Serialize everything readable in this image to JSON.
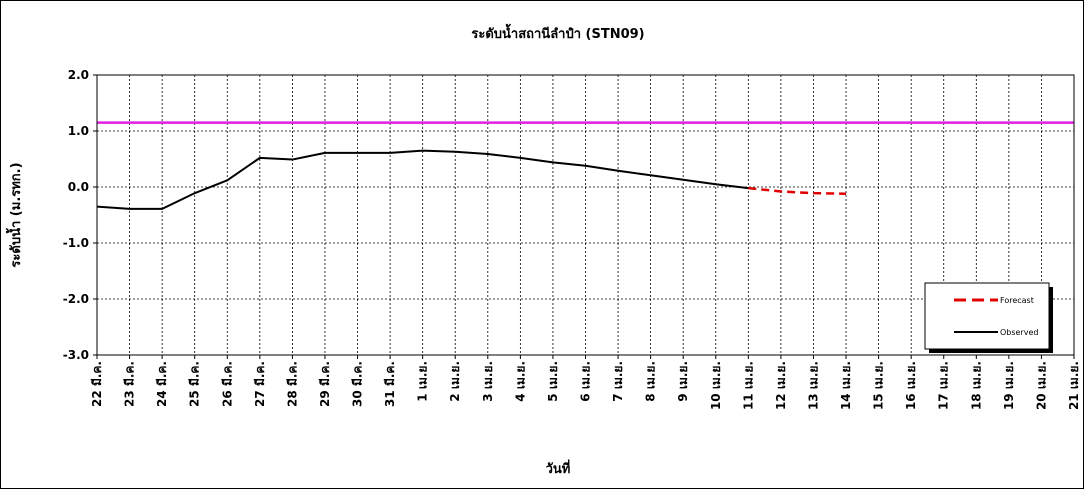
{
  "chart_data": {
    "type": "line",
    "title": "ระดับน้ำสถานีลำปำ (STN09)",
    "xlabel": "วันที่",
    "ylabel": "ระดับน้ำ (ม.รทก.)",
    "ylim": [
      -3.0,
      2.0
    ],
    "yticks": [
      "2.0",
      "1.0",
      "0.0",
      "-1.0",
      "-2.0",
      "-3.0"
    ],
    "categories": [
      "22 มี.ค.",
      "23 มี.ค.",
      "24 มี.ค.",
      "25 มี.ค.",
      "26 มี.ค.",
      "27 มี.ค.",
      "28 มี.ค.",
      "29 มี.ค.",
      "30 มี.ค.",
      "31 มี.ค.",
      "1 เม.ย.",
      "2 เม.ย.",
      "3 เม.ย.",
      "4 เม.ย.",
      "5 เม.ย.",
      "6 เม.ย.",
      "7 เม.ย.",
      "8 เม.ย.",
      "9 เม.ย.",
      "10 เม.ย.",
      "11 เม.ย.",
      "12 เม.ย.",
      "13 เม.ย.",
      "14 เม.ย.",
      "15 เม.ย.",
      "16 เม.ย.",
      "17 เม.ย.",
      "18 เม.ย.",
      "19 เม.ย.",
      "20 เม.ย.",
      "21 เม.ย."
    ],
    "grid": true,
    "legend_position": "bottom-right",
    "reference_line": {
      "value": 1.15,
      "color": "#e020e0"
    },
    "series": [
      {
        "name": "Observed",
        "color": "#000000",
        "style": "solid",
        "values": [
          -0.35,
          -0.39,
          -0.39,
          -0.11,
          0.12,
          0.52,
          0.49,
          0.61,
          0.61,
          0.61,
          0.65,
          0.63,
          0.59,
          0.52,
          0.44,
          0.38,
          0.29,
          0.21,
          0.13,
          0.05,
          -0.02,
          null,
          null,
          null,
          null,
          null,
          null,
          null,
          null,
          null,
          null
        ]
      },
      {
        "name": "Forecast",
        "color": "#e00000",
        "style": "dashed",
        "values": [
          null,
          null,
          null,
          null,
          null,
          null,
          null,
          null,
          null,
          null,
          null,
          null,
          null,
          null,
          null,
          null,
          null,
          null,
          null,
          null,
          -0.02,
          -0.08,
          -0.11,
          -0.12,
          null,
          null,
          null,
          null,
          null,
          null,
          null
        ]
      }
    ]
  }
}
